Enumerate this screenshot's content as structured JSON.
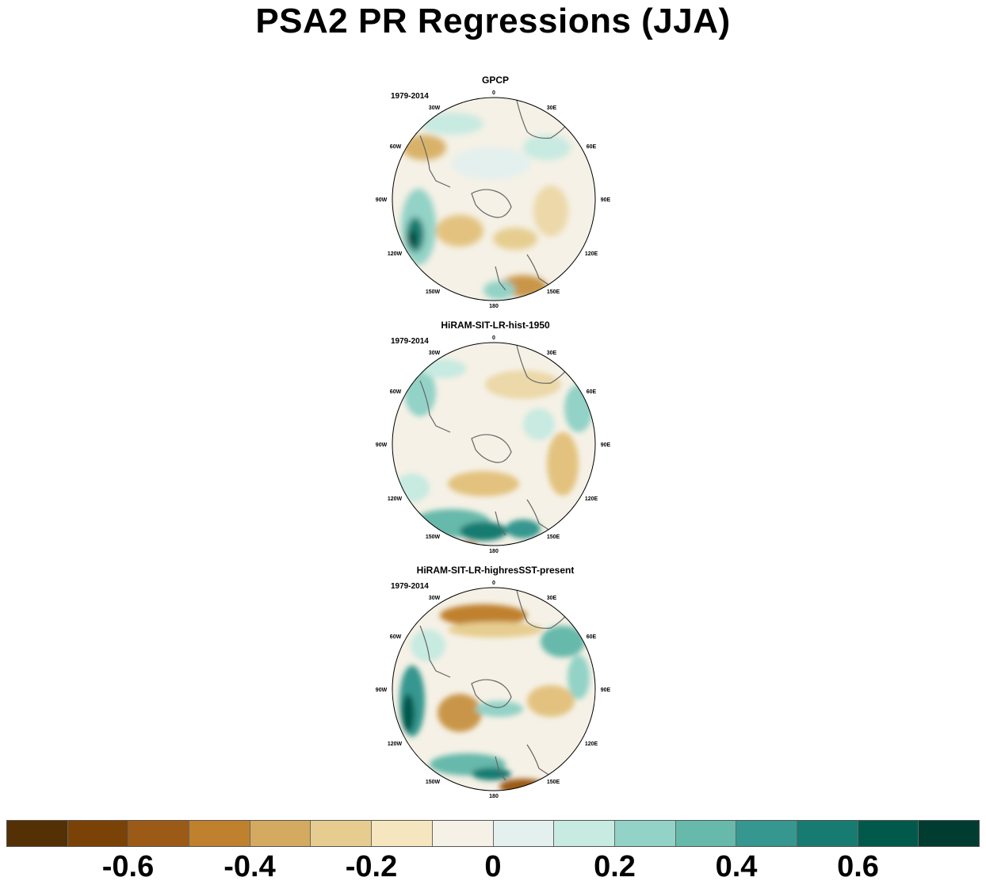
{
  "title": "PSA2 PR Regressions (JJA)",
  "longitude_labels": [
    "0",
    "30E",
    "60E",
    "90E",
    "120E",
    "150E",
    "180",
    "150W",
    "120W",
    "90W",
    "60W",
    "30W"
  ],
  "panels": [
    {
      "title": "GPCP",
      "period": "1979-2014"
    },
    {
      "title": "HiRAM-SIT-LR-hist-1950",
      "period": "1979-2014"
    },
    {
      "title": "HiRAM-SIT-LR-highresSST-present",
      "period": "1979-2014"
    }
  ],
  "colorbar": {
    "colors": [
      "#543005",
      "#7b4208",
      "#9b5a16",
      "#bf812d",
      "#d4aa60",
      "#e6cd8f",
      "#f5e6c0",
      "#f5f1e6",
      "#e3f0ee",
      "#c7eae1",
      "#93d2c6",
      "#66b9ab",
      "#35978f",
      "#177b71",
      "#01594c",
      "#003c30"
    ],
    "tick_labels": [
      "-0.6",
      "-0.4",
      "-0.2",
      "0",
      "0.2",
      "0.4",
      "0.6"
    ],
    "tick_values": [
      -0.6,
      -0.4,
      -0.2,
      0,
      0.2,
      0.4,
      0.6
    ],
    "levels_min": -0.8,
    "levels_step": 0.1
  }
}
